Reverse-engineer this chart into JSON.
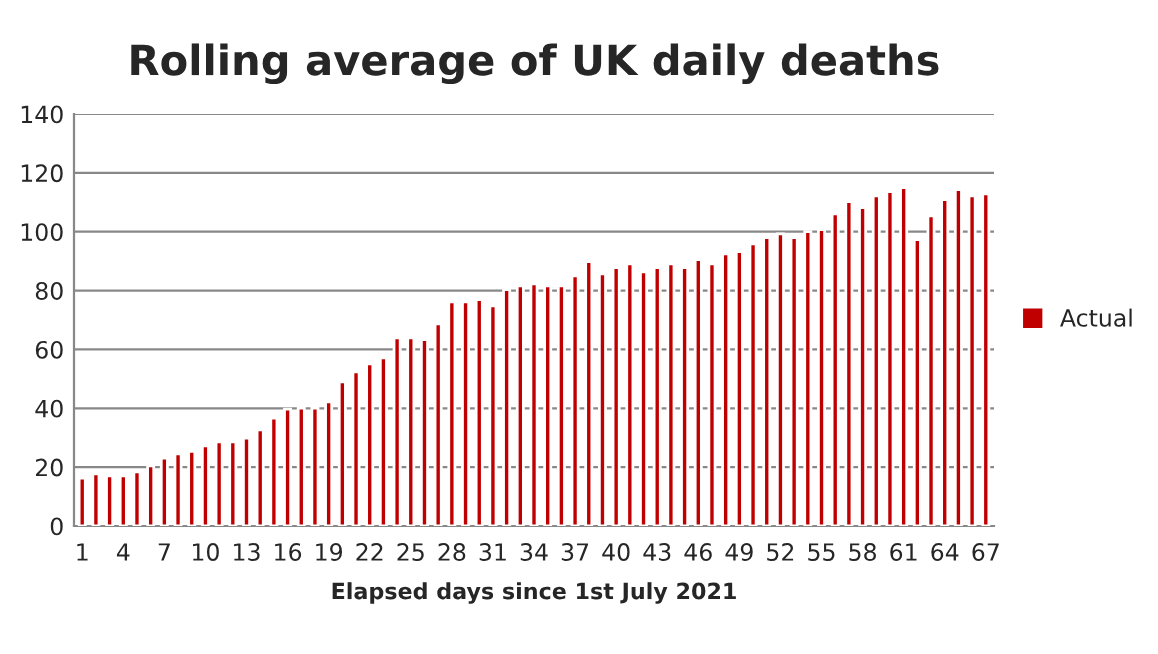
{
  "chart_data": {
    "type": "bar",
    "title": "Rolling average of UK daily deaths",
    "xlabel": "Elapsed days since 1st July 2021",
    "categories": [
      "1",
      null,
      null,
      "4",
      null,
      null,
      "7",
      null,
      null,
      "10",
      null,
      null,
      "13",
      null,
      null,
      "16",
      null,
      null,
      "19",
      null,
      null,
      "22",
      null,
      null,
      "25",
      null,
      null,
      "28",
      null,
      null,
      "31",
      null,
      null,
      "34",
      null,
      null,
      "37",
      null,
      null,
      "40",
      null,
      null,
      "43",
      null,
      null,
      "46",
      null,
      null,
      "49",
      null,
      null,
      "52",
      null,
      null,
      "55",
      null,
      null,
      "58",
      null,
      null,
      "61",
      null,
      null,
      "64",
      null,
      null,
      "67"
    ],
    "series": [
      {
        "name": "Actual",
        "color": "#c00000",
        "values": [
          16.3,
          17.7,
          17,
          17,
          18.4,
          20.4,
          23.1,
          24.5,
          25.4,
          27.2,
          28.6,
          28.6,
          29.9,
          32.7,
          36.7,
          39.7,
          40.1,
          40.1,
          42.2,
          49,
          52.4,
          55.1,
          57.1,
          63.9,
          63.9,
          63.3,
          68.7,
          76.2,
          76.2,
          76.9,
          74.8,
          80.3,
          81.6,
          82.3,
          81.6,
          81.6,
          85,
          89.8,
          85.7,
          87.8,
          89.1,
          86.4,
          87.8,
          89.1,
          87.8,
          90.5,
          89.1,
          92.5,
          93.2,
          95.9,
          98,
          99.3,
          98,
          100,
          100.7,
          106.1,
          110.2,
          108.2,
          112.2,
          113.6,
          115,
          97.3,
          105.4,
          110.9,
          114.3,
          112.2,
          112.9
        ]
      }
    ],
    "ylim": [
      0,
      140
    ],
    "yticks": [
      0,
      20,
      40,
      60,
      80,
      100,
      120,
      140
    ],
    "grid": "y",
    "legend": "right"
  }
}
